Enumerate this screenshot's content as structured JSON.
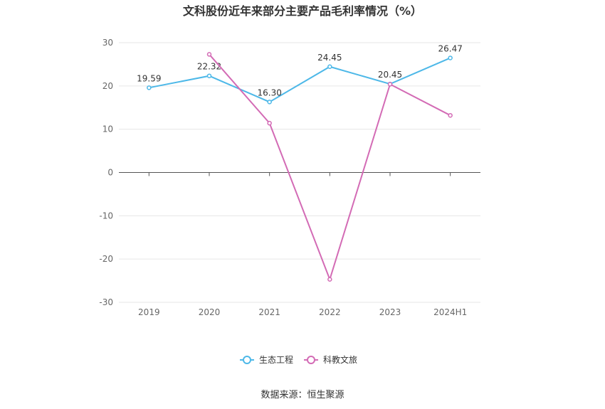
{
  "chart_data": {
    "type": "line",
    "title": "文科股份近年来部分主要产品毛利率情况（%）",
    "categories": [
      "2019",
      "2020",
      "2021",
      "2022",
      "2023",
      "2024H1"
    ],
    "ylim": [
      -30,
      30
    ],
    "yticks": [
      30,
      20,
      10,
      0,
      -10,
      -20,
      -30
    ],
    "grid": true,
    "legend_position": "bottom",
    "series": [
      {
        "name": "生态工程",
        "color": "#4db8e8",
        "values": [
          19.59,
          22.32,
          16.3,
          24.45,
          20.45,
          26.47
        ],
        "labels": [
          "19.59",
          "22.32",
          "16.30",
          "24.45",
          "20.45",
          "26.47"
        ]
      },
      {
        "name": "科教文旅",
        "color": "#d36bb5",
        "values": [
          null,
          27.3,
          11.4,
          -24.7,
          20.4,
          13.2
        ]
      }
    ]
  },
  "source_text": "数据来源：恒生聚源"
}
